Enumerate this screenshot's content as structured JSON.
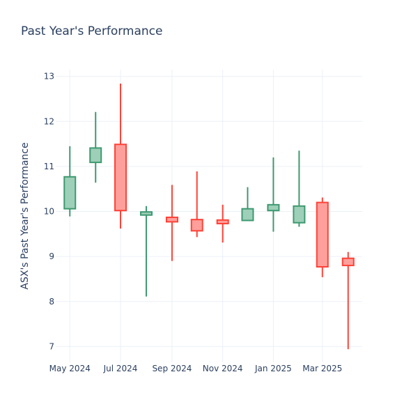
{
  "chart_data": {
    "type": "candlestick",
    "title": "Past Year's Performance",
    "xlabel": "",
    "ylabel": "ASX's Past Year's Performance",
    "ylim": [
      6.65,
      13.15
    ],
    "yticks": [
      7,
      8,
      9,
      10,
      11,
      12,
      13
    ],
    "grid": true,
    "colors": {
      "increasing": "#3d9970",
      "increasing_fill": "#9ecfb8",
      "decreasing": "#ff4136",
      "decreasing_fill": "#ff9f9b",
      "text": "#2a3f5f",
      "grid": "#ebf0f8"
    },
    "x": [
      "2024-05-01",
      "2024-06-01",
      "2024-07-01",
      "2024-08-01",
      "2024-09-01",
      "2024-10-01",
      "2024-11-01",
      "2024-12-01",
      "2025-01-01",
      "2025-02-01",
      "2025-03-01",
      "2025-04-01"
    ],
    "xticks": [
      {
        "date": "2024-05-01",
        "label": "May 2024"
      },
      {
        "date": "2024-07-01",
        "label": "Jul 2024"
      },
      {
        "date": "2024-09-01",
        "label": "Sep 2024"
      },
      {
        "date": "2024-11-01",
        "label": "Nov 2024"
      },
      {
        "date": "2025-01-01",
        "label": "Jan 2025"
      },
      {
        "date": "2025-03-01",
        "label": "Mar 2025"
      }
    ],
    "open": [
      10.06,
      11.09,
      11.49,
      9.92,
      9.87,
      9.82,
      9.81,
      9.8,
      10.02,
      9.75,
      10.2,
      8.96
    ],
    "high": [
      11.45,
      12.21,
      12.84,
      10.12,
      10.59,
      10.89,
      10.15,
      10.54,
      11.2,
      11.35,
      10.31,
      9.1
    ],
    "low": [
      9.89,
      10.64,
      9.62,
      8.11,
      8.9,
      9.43,
      9.31,
      9.79,
      9.55,
      9.66,
      8.54,
      6.94
    ],
    "close": [
      10.77,
      11.41,
      10.02,
      9.99,
      9.77,
      9.57,
      9.73,
      10.06,
      10.15,
      10.12,
      8.77,
      8.8
    ]
  }
}
